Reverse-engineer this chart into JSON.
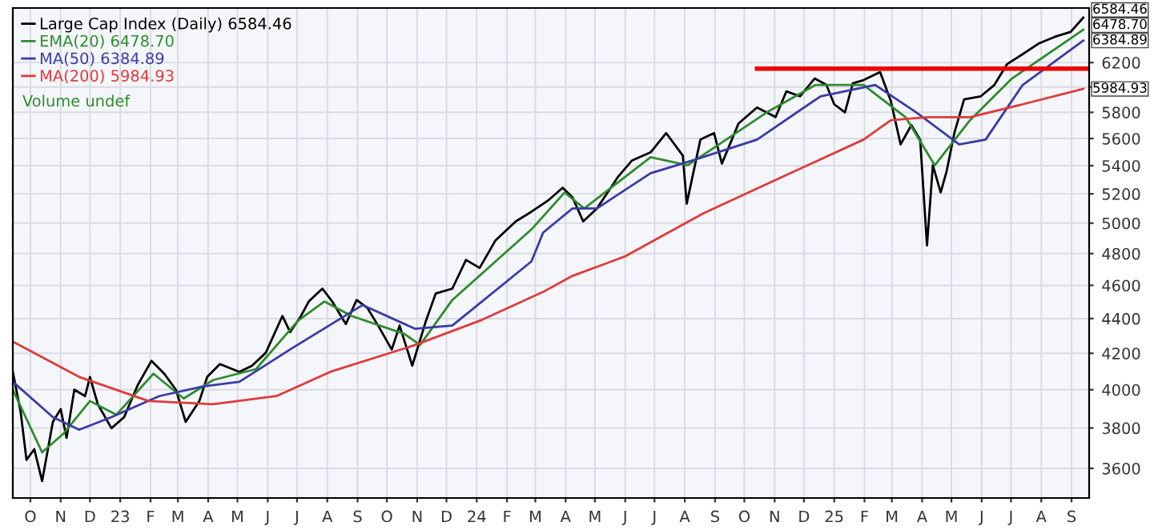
{
  "chart_data": {
    "type": "line",
    "log": "y",
    "grid": true,
    "legend": "top left",
    "xlim": [
      "2022-09-13",
      "2025-09-19"
    ],
    "ylim": [
      3460,
      6670
    ],
    "yticks": [
      3600,
      3800,
      4000,
      4200,
      4400,
      4600,
      4800,
      5000,
      5200,
      5400,
      5600,
      5800,
      {
        "value": 6000,
        "label": null
      },
      6200
    ],
    "xticks": [
      {
        "value": "2022-10-01",
        "label": "O"
      },
      {
        "value": "2022-11-01",
        "label": "N"
      },
      {
        "value": "2022-12-01",
        "label": "D"
      },
      {
        "value": "2023-01-01",
        "label": "23"
      },
      {
        "value": "2023-02-01",
        "label": "F"
      },
      {
        "value": "2023-03-01",
        "label": "M"
      },
      {
        "value": "2023-04-01",
        "label": "A"
      },
      {
        "value": "2023-05-01",
        "label": "M"
      },
      {
        "value": "2023-06-01",
        "label": "J"
      },
      {
        "value": "2023-07-01",
        "label": "J"
      },
      {
        "value": "2023-08-01",
        "label": "A"
      },
      {
        "value": "2023-09-01",
        "label": "S"
      },
      {
        "value": "2023-10-01",
        "label": "O"
      },
      {
        "value": "2023-11-01",
        "label": "N"
      },
      {
        "value": "2023-12-01",
        "label": "D"
      },
      {
        "value": "2024-01-01",
        "label": "24"
      },
      {
        "value": "2024-02-01",
        "label": "F"
      },
      {
        "value": "2024-03-01",
        "label": "M"
      },
      {
        "value": "2024-04-01",
        "label": "A"
      },
      {
        "value": "2024-05-01",
        "label": "M"
      },
      {
        "value": "2024-06-01",
        "label": "J"
      },
      {
        "value": "2024-07-01",
        "label": "J"
      },
      {
        "value": "2024-08-01",
        "label": "A"
      },
      {
        "value": "2024-09-01",
        "label": "S"
      },
      {
        "value": "2024-10-01",
        "label": "O"
      },
      {
        "value": "2024-11-01",
        "label": "N"
      },
      {
        "value": "2024-12-01",
        "label": "D"
      },
      {
        "value": "2025-01-01",
        "label": "25"
      },
      {
        "value": "2025-02-01",
        "label": "F"
      },
      {
        "value": "2025-03-01",
        "label": "M"
      },
      {
        "value": "2025-04-01",
        "label": "A"
      },
      {
        "value": "2025-05-01",
        "label": "M"
      },
      {
        "value": "2025-06-01",
        "label": "J"
      },
      {
        "value": "2025-07-01",
        "label": "J"
      },
      {
        "value": "2025-08-01",
        "label": "A"
      },
      {
        "value": "2025-09-01",
        "label": "S"
      }
    ],
    "series": [
      {
        "name": "Large Cap Index (Daily) 6584.46",
        "color": "#000000",
        "x": [
          "2022-09-13",
          "2022-09-21",
          "2022-09-27",
          "2022-10-05",
          "2022-10-13",
          "2022-10-24",
          "2022-11-01",
          "2022-11-07",
          "2022-11-15",
          "2022-11-26",
          "2022-12-01",
          "2022-12-09",
          "2022-12-23",
          "2023-01-05",
          "2023-01-19",
          "2023-02-02",
          "2023-02-15",
          "2023-02-27",
          "2023-03-09",
          "2023-03-23",
          "2023-03-31",
          "2023-04-13",
          "2023-05-03",
          "2023-05-16",
          "2023-05-30",
          "2023-06-16",
          "2023-06-24",
          "2023-07-05",
          "2023-07-13",
          "2023-07-27",
          "2023-08-06",
          "2023-08-20",
          "2023-08-31",
          "2023-09-11",
          "2023-09-22",
          "2023-10-06",
          "2023-10-14",
          "2023-10-27",
          "2023-11-10",
          "2023-11-20",
          "2023-12-07",
          "2023-12-21",
          "2024-01-04",
          "2024-01-20",
          "2024-02-10",
          "2024-02-26",
          "2024-03-14",
          "2024-03-29",
          "2024-04-08",
          "2024-04-19",
          "2024-05-03",
          "2024-05-25",
          "2024-06-08",
          "2024-06-27",
          "2024-07-13",
          "2024-07-30",
          "2024-08-03",
          "2024-08-17",
          "2024-08-31",
          "2024-09-08",
          "2024-09-25",
          "2024-10-14",
          "2024-11-02",
          "2024-11-13",
          "2024-11-27",
          "2024-12-12",
          "2024-12-24",
          "2025-01-01",
          "2025-01-12",
          "2025-01-20",
          "2025-01-31",
          "2025-02-17",
          "2025-02-28",
          "2025-03-10",
          "2025-03-21",
          "2025-03-30",
          "2025-04-06",
          "2025-04-12",
          "2025-04-20",
          "2025-04-26",
          "2025-05-04",
          "2025-05-14",
          "2025-05-31",
          "2025-06-14",
          "2025-06-27",
          "2025-07-10",
          "2025-07-30",
          "2025-08-15",
          "2025-08-31",
          "2025-09-13"
        ],
        "values": [
          4097,
          3884,
          3641,
          3694,
          3539,
          3831,
          3898,
          3750,
          4000,
          3966,
          4069,
          3923,
          3799,
          3856,
          4026,
          4158,
          4087,
          4000,
          3831,
          3940,
          4069,
          4140,
          4097,
          4131,
          4203,
          4415,
          4321,
          4415,
          4502,
          4580,
          4502,
          4368,
          4511,
          4463,
          4359,
          4221,
          4359,
          4131,
          4387,
          4550,
          4580,
          4760,
          4709,
          4884,
          5012,
          5077,
          5154,
          5243,
          5176,
          5012,
          5099,
          5323,
          5438,
          5497,
          5641,
          5473,
          5132,
          5592,
          5641,
          5415,
          5714,
          5838,
          5763,
          5965,
          5926,
          6069,
          6017,
          5863,
          5800,
          6030,
          6056,
          6121,
          5888,
          5556,
          5702,
          5592,
          4853,
          5403,
          5210,
          5357,
          5641,
          5901,
          5926,
          6017,
          6187,
          6254,
          6363,
          6418,
          6460,
          6584.46
        ]
      },
      {
        "name": "EMA(20) 6478.70",
        "color": "#2e8b2e",
        "x": [
          "2022-09-13",
          "2022-10-13",
          "2022-11-04",
          "2022-12-01",
          "2022-12-28",
          "2023-02-04",
          "2023-03-07",
          "2023-04-06",
          "2023-05-20",
          "2023-07-02",
          "2023-07-29",
          "2023-08-26",
          "2023-10-19",
          "2023-11-04",
          "2023-12-07",
          "2024-02-26",
          "2024-03-31",
          "2024-04-20",
          "2024-06-27",
          "2024-08-04",
          "2024-09-05",
          "2024-10-24",
          "2024-12-13",
          "2025-01-31",
          "2025-03-15",
          "2025-04-14",
          "2025-05-20",
          "2025-07-02",
          "2025-09-13"
        ],
        "values": [
          4000,
          3678,
          3772,
          3940,
          3868,
          4087,
          3953,
          4052,
          4112,
          4387,
          4502,
          4415,
          4310,
          4247,
          4511,
          4958,
          5210,
          5099,
          5461,
          5403,
          5556,
          5800,
          6017,
          6017,
          5763,
          5403,
          5739,
          6069,
          6478.7
        ]
      },
      {
        "name": "MA(50) 6384.89",
        "color": "#3a3aa8",
        "x": [
          "2022-09-13",
          "2022-10-24",
          "2022-11-20",
          "2022-12-23",
          "2023-02-10",
          "2023-03-26",
          "2023-05-03",
          "2023-06-26",
          "2023-09-06",
          "2023-10-30",
          "2023-12-07",
          "2024-02-26",
          "2024-03-09",
          "2024-04-08",
          "2024-05-03",
          "2024-06-27",
          "2024-08-09",
          "2024-10-14",
          "2024-12-18",
          "2025-02-12",
          "2025-03-26",
          "2025-05-09",
          "2025-06-05",
          "2025-07-13",
          "2025-09-13"
        ],
        "values": [
          4043,
          3856,
          3791,
          3856,
          3966,
          4017,
          4043,
          4229,
          4480,
          4340,
          4359,
          4750,
          4937,
          5099,
          5099,
          5346,
          5438,
          5592,
          5926,
          6017,
          5800,
          5556,
          5592,
          6017,
          6384.89
        ]
      },
      {
        "name": "MA(200) 5984.93",
        "color": "#e03a3a",
        "x": [
          "2022-09-13",
          "2022-11-20",
          "2023-01-30",
          "2023-04-06",
          "2023-06-10",
          "2023-08-04",
          "2023-10-30",
          "2024-01-04",
          "2024-03-09",
          "2024-04-08",
          "2024-05-31",
          "2024-08-20",
          "2024-11-10",
          "2025-01-31",
          "2025-02-28",
          "2025-04-07",
          "2025-05-20",
          "2025-07-13",
          "2025-09-13"
        ],
        "values": [
          4266,
          4069,
          3940,
          3923,
          3966,
          4097,
          4247,
          4387,
          4560,
          4659,
          4780,
          5066,
          5323,
          5592,
          5739,
          5763,
          5763,
          5863,
          5984.93
        ]
      },
      {
        "color": "#ee0000",
        "x": [
          "2024-10-14",
          "2025-09-19"
        ],
        "values": [
          6150,
          6150
        ]
      }
    ],
    "annotations": [
      "Volume undef",
      {
        "text": "6584.46",
        "x": "2025-09-13",
        "y": 6584.46
      },
      {
        "text": "6478.70",
        "x": "2025-09-13",
        "y": 6478.7
      },
      {
        "text": "6384.89",
        "x": "2025-09-13",
        "y": 6384.89
      },
      {
        "text": "5984.93",
        "x": "2025-09-13",
        "y": 5984.93
      }
    ]
  }
}
